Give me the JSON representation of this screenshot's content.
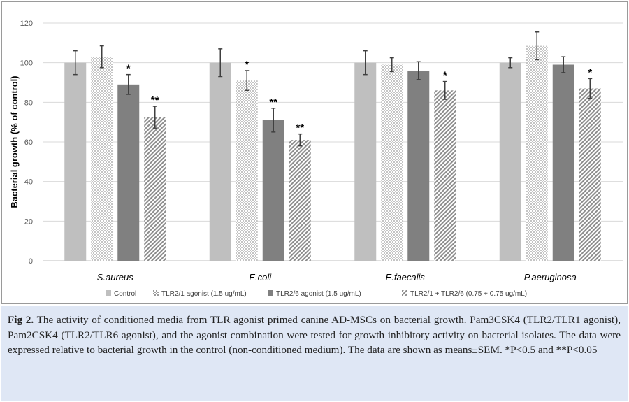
{
  "chart_data": {
    "type": "bar",
    "categories": [
      "S.aureus",
      "E.coli",
      "E.faecalis",
      "P.aeruginosa"
    ],
    "ylabel": "Bacterial growth (% of control)",
    "xlabel": "",
    "ylim": [
      0,
      120
    ],
    "yticks": [
      0,
      20,
      40,
      60,
      80,
      100,
      120
    ],
    "grid": true,
    "legend_position": "bottom",
    "series": [
      {
        "name": "Control",
        "values": [
          100,
          100,
          100,
          100
        ],
        "errors": [
          6,
          7,
          6,
          2.5
        ],
        "annotations": [
          "",
          "",
          "",
          ""
        ],
        "pattern": "solid-light",
        "color": "#bfbfbf"
      },
      {
        "name": "TLR2/1 agonist (1.5 ug/mL)",
        "values": [
          103,
          91,
          99,
          108.5
        ],
        "errors": [
          5.5,
          5,
          3.5,
          7
        ],
        "annotations": [
          "",
          "*",
          "",
          ""
        ],
        "pattern": "checker",
        "color": "#d0d0d0"
      },
      {
        "name": "TLR2/6 agonist (1.5 ug/mL)",
        "values": [
          89,
          71,
          96,
          99
        ],
        "errors": [
          5,
          6,
          4.5,
          4
        ],
        "annotations": [
          "*",
          "**",
          "",
          ""
        ],
        "pattern": "solid-dark",
        "color": "#808080"
      },
      {
        "name": "TLR2/1 + TLR2/6 (0.75 + 0.75 ug/mL)",
        "values": [
          72.5,
          61,
          86,
          87
        ],
        "errors": [
          5.5,
          3,
          4.5,
          5
        ],
        "annotations": [
          "**",
          "**",
          "*",
          "*"
        ],
        "pattern": "diagonal",
        "color": "#8c8c8c"
      }
    ]
  },
  "caption": {
    "label": "Fig 2.",
    "text": " The activity of conditioned media from TLR agonist primed canine AD-MSCs on bacterial growth. Pam3CSK4 (TLR2/TLR1 agonist), Pam2CSK4 (TLR2/TLR6 agonist), and the agonist combination were tested for growth inhibitory activity on bacterial isolates. The data were expressed relative to bacterial growth in the control (non-conditioned medium). The data are shown as means±SEM. *P<0.5 and **P<0.05"
  }
}
